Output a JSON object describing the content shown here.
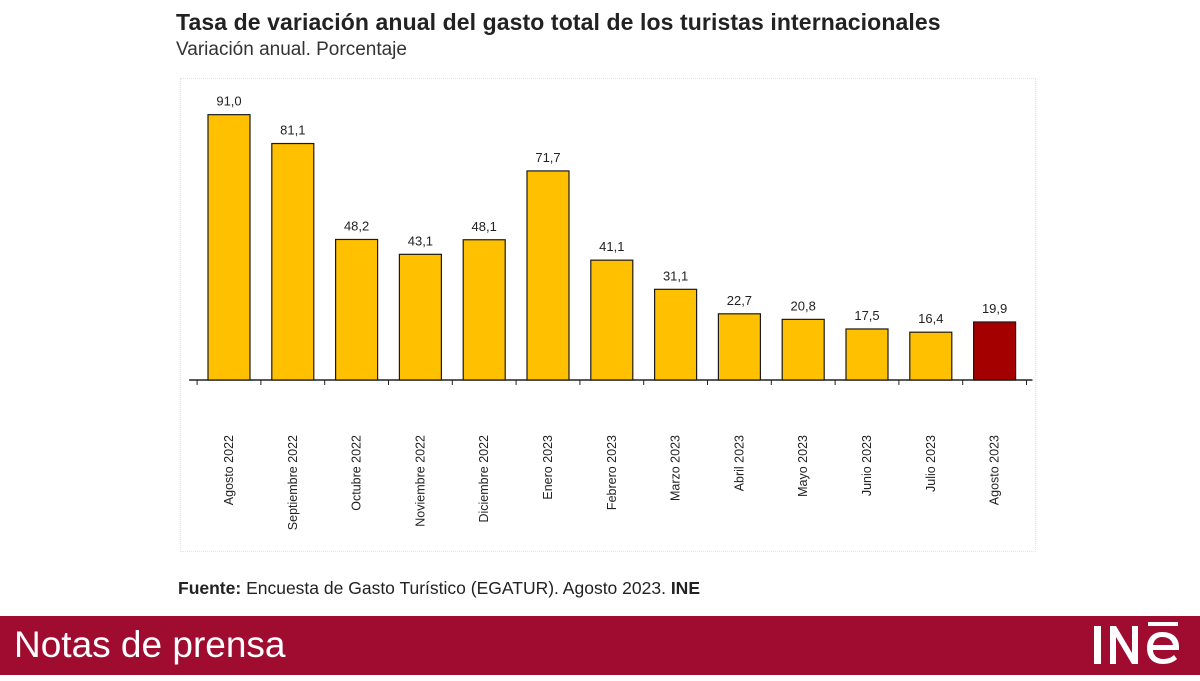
{
  "header": {
    "title": "Tasa de variación anual del gasto total de los turistas internacionales",
    "subtitle": "Variación anual. Porcentaje"
  },
  "chart_data": {
    "type": "bar",
    "title": "Tasa de variación anual del gasto total de los turistas internacionales",
    "subtitle": "Variación anual. Porcentaje",
    "categories": [
      "Agosto 2022",
      "Septiembre 2022",
      "Octubre 2022",
      "Noviembre 2022",
      "Diciembre 2022",
      "Enero 2023",
      "Febrero 2023",
      "Marzo 2023",
      "Abril 2023",
      "Mayo 2023",
      "Junio 2023",
      "Julio 2023",
      "Agosto 2023"
    ],
    "values": [
      91.0,
      81.1,
      48.2,
      43.1,
      48.1,
      71.7,
      41.1,
      31.1,
      22.7,
      20.8,
      17.5,
      16.4,
      19.9
    ],
    "value_labels": [
      "91,0",
      "81,1",
      "48,2",
      "43,1",
      "48,1",
      "71,7",
      "41,1",
      "31,1",
      "22,7",
      "20,8",
      "17,5",
      "16,4",
      "19,9"
    ],
    "colors": {
      "default": "#ffc000",
      "highlight": "#a50000",
      "outline": "#1a1a1a"
    },
    "highlight_index": 12,
    "ylim": [
      0,
      95
    ],
    "xlabel": "",
    "ylabel": "",
    "grid": false,
    "legend": "none"
  },
  "source": {
    "label": "Fuente:",
    "text": " Encuesta de Gasto Turístico (EGATUR).  Agosto 2023. ",
    "org": "INE"
  },
  "footer": {
    "title": "Notas de prensa",
    "logo_text": "INE",
    "bg_color": "#a00c30"
  }
}
